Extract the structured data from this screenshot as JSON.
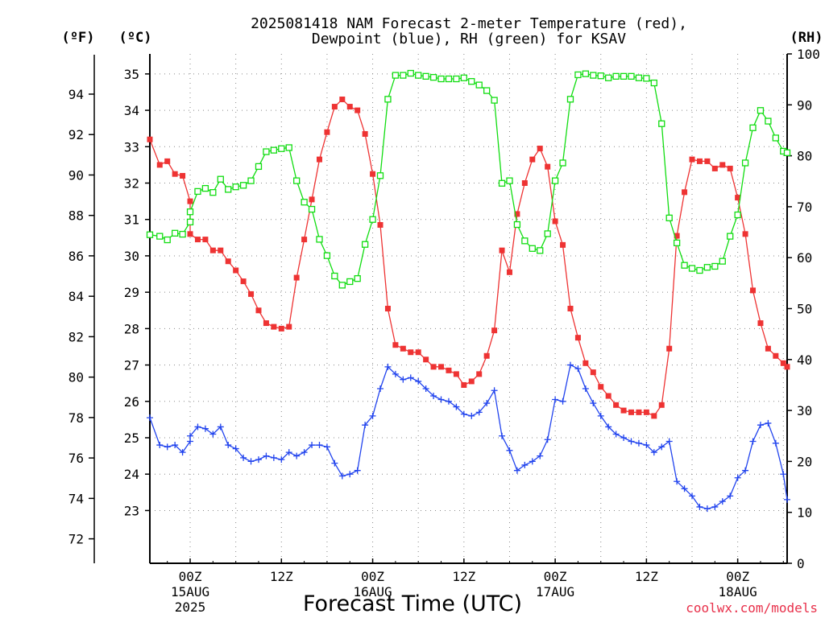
{
  "chart_data": {
    "type": "line",
    "title_line1": "2025081418 NAM Forecast 2-meter Temperature (red),",
    "title_line2": "Dewpoint (blue), RH (green) for KSAV",
    "left_outer_unit": "(ºF)",
    "left_inner_unit": "(ºC)",
    "right_unit": "(RH)",
    "xlabel": "Forecast Time (UTC)",
    "credit": "coolwx.com/models",
    "hours_range": [
      -5.3,
      78.5
    ],
    "celsius_range": [
      21.55,
      35.55
    ],
    "rh_range": [
      0,
      100
    ],
    "fahrenheit_ticks": [
      72,
      74,
      76,
      78,
      80,
      82,
      84,
      86,
      88,
      90,
      92,
      94
    ],
    "celsius_ticks": [
      23,
      24,
      25,
      26,
      27,
      28,
      29,
      30,
      31,
      32,
      33,
      34,
      35
    ],
    "rh_ticks": [
      0,
      10,
      20,
      30,
      40,
      50,
      60,
      70,
      80,
      90,
      100
    ],
    "x_ticks": [
      {
        "hour": 0,
        "l1": "00Z",
        "l2": "15AUG",
        "l3": "2025"
      },
      {
        "hour": 12,
        "l1": "12Z",
        "l2": "",
        "l3": ""
      },
      {
        "hour": 24,
        "l1": "00Z",
        "l2": "16AUG",
        "l3": ""
      },
      {
        "hour": 36,
        "l1": "12Z",
        "l2": "",
        "l3": ""
      },
      {
        "hour": 48,
        "l1": "00Z",
        "l2": "17AUG",
        "l3": ""
      },
      {
        "hour": 60,
        "l1": "12Z",
        "l2": "",
        "l3": ""
      },
      {
        "hour": 72,
        "l1": "00Z",
        "l2": "18AUG",
        "l3": ""
      }
    ],
    "grid": true,
    "series": [
      {
        "color": "#ee3333",
        "marker": "square-filled",
        "axis": "celsius",
        "points": [
          [
            -5.3,
            33.2
          ],
          [
            -4,
            32.5
          ],
          [
            -3,
            32.6
          ],
          [
            -2,
            32.25
          ],
          [
            -1,
            32.2
          ],
          [
            0,
            31.5
          ],
          [
            0,
            30.6
          ],
          [
            1,
            30.45
          ],
          [
            2,
            30.45
          ],
          [
            3,
            30.15
          ],
          [
            4,
            30.15
          ],
          [
            5,
            29.85
          ],
          [
            6,
            29.6
          ],
          [
            7,
            29.3
          ],
          [
            8,
            28.95
          ],
          [
            9,
            28.5
          ],
          [
            10,
            28.15
          ],
          [
            11,
            28.05
          ],
          [
            12,
            28.0
          ],
          [
            13,
            28.05
          ],
          [
            14,
            29.4
          ],
          [
            15,
            30.45
          ],
          [
            16,
            31.55
          ],
          [
            17,
            32.65
          ],
          [
            18,
            33.4
          ],
          [
            19,
            34.1
          ],
          [
            20,
            34.3
          ],
          [
            21,
            34.1
          ],
          [
            22,
            34.0
          ],
          [
            23,
            33.35
          ],
          [
            24,
            32.25
          ],
          [
            25,
            30.85
          ],
          [
            26,
            28.55
          ],
          [
            27,
            27.55
          ],
          [
            28,
            27.45
          ],
          [
            29,
            27.35
          ],
          [
            30,
            27.35
          ],
          [
            31,
            27.15
          ],
          [
            32,
            26.95
          ],
          [
            33,
            26.95
          ],
          [
            34,
            26.85
          ],
          [
            35,
            26.75
          ],
          [
            36,
            26.45
          ],
          [
            37,
            26.55
          ],
          [
            38,
            26.75
          ],
          [
            39,
            27.25
          ],
          [
            40,
            27.95
          ],
          [
            41,
            30.15
          ],
          [
            42,
            29.55
          ],
          [
            43,
            31.15
          ],
          [
            44,
            32.0
          ],
          [
            45,
            32.65
          ],
          [
            46,
            32.95
          ],
          [
            47,
            32.45
          ],
          [
            48,
            30.95
          ],
          [
            49,
            30.3
          ],
          [
            50,
            28.55
          ],
          [
            51,
            27.75
          ],
          [
            52,
            27.05
          ],
          [
            53,
            26.8
          ],
          [
            54,
            26.4
          ],
          [
            55,
            26.15
          ],
          [
            56,
            25.9
          ],
          [
            57,
            25.75
          ],
          [
            58,
            25.7
          ],
          [
            59,
            25.7
          ],
          [
            60,
            25.7
          ],
          [
            61,
            25.6
          ],
          [
            62,
            25.9
          ],
          [
            63,
            27.45
          ],
          [
            64,
            30.55
          ],
          [
            65,
            31.75
          ],
          [
            66,
            32.65
          ],
          [
            67,
            32.6
          ],
          [
            68,
            32.6
          ],
          [
            69,
            32.4
          ],
          [
            70,
            32.5
          ],
          [
            71,
            32.4
          ],
          [
            72,
            31.6
          ],
          [
            73,
            30.6
          ],
          [
            74,
            29.05
          ],
          [
            75,
            28.15
          ],
          [
            76,
            27.45
          ],
          [
            77,
            27.25
          ],
          [
            78,
            27.05
          ],
          [
            78.5,
            26.95
          ]
        ]
      },
      {
        "color": "#2244ee",
        "marker": "plus",
        "axis": "celsius",
        "points": [
          [
            -5.3,
            25.55
          ],
          [
            -4,
            24.8
          ],
          [
            -3,
            24.75
          ],
          [
            -2,
            24.8
          ],
          [
            -1,
            24.6
          ],
          [
            0,
            24.9
          ],
          [
            0,
            25.05
          ],
          [
            1,
            25.3
          ],
          [
            2,
            25.25
          ],
          [
            3,
            25.1
          ],
          [
            4,
            25.3
          ],
          [
            5,
            24.8
          ],
          [
            6,
            24.7
          ],
          [
            7,
            24.45
          ],
          [
            8,
            24.35
          ],
          [
            9,
            24.4
          ],
          [
            10,
            24.5
          ],
          [
            11,
            24.45
          ],
          [
            12,
            24.4
          ],
          [
            13,
            24.6
          ],
          [
            14,
            24.5
          ],
          [
            15,
            24.6
          ],
          [
            16,
            24.8
          ],
          [
            17,
            24.8
          ],
          [
            18,
            24.75
          ],
          [
            19,
            24.3
          ],
          [
            20,
            23.95
          ],
          [
            21,
            24.0
          ],
          [
            22,
            24.1
          ],
          [
            23,
            25.35
          ],
          [
            24,
            25.6
          ],
          [
            25,
            26.35
          ],
          [
            26,
            26.95
          ],
          [
            27,
            26.75
          ],
          [
            28,
            26.6
          ],
          [
            29,
            26.65
          ],
          [
            30,
            26.55
          ],
          [
            31,
            26.35
          ],
          [
            32,
            26.15
          ],
          [
            33,
            26.05
          ],
          [
            34,
            26.0
          ],
          [
            35,
            25.85
          ],
          [
            36,
            25.65
          ],
          [
            37,
            25.6
          ],
          [
            38,
            25.7
          ],
          [
            39,
            25.95
          ],
          [
            40,
            26.3
          ],
          [
            41,
            25.05
          ],
          [
            42,
            24.65
          ],
          [
            43,
            24.1
          ],
          [
            44,
            24.25
          ],
          [
            45,
            24.35
          ],
          [
            46,
            24.5
          ],
          [
            47,
            24.95
          ],
          [
            48,
            26.05
          ],
          [
            49,
            26.0
          ],
          [
            50,
            27.0
          ],
          [
            51,
            26.9
          ],
          [
            52,
            26.35
          ],
          [
            53,
            25.95
          ],
          [
            54,
            25.6
          ],
          [
            55,
            25.3
          ],
          [
            56,
            25.1
          ],
          [
            57,
            25.0
          ],
          [
            58,
            24.9
          ],
          [
            59,
            24.85
          ],
          [
            60,
            24.8
          ],
          [
            61,
            24.6
          ],
          [
            62,
            24.75
          ],
          [
            63,
            24.9
          ],
          [
            64,
            23.8
          ],
          [
            65,
            23.6
          ],
          [
            66,
            23.4
          ],
          [
            67,
            23.1
          ],
          [
            68,
            23.05
          ],
          [
            69,
            23.1
          ],
          [
            70,
            23.25
          ],
          [
            71,
            23.4
          ],
          [
            72,
            23.9
          ],
          [
            73,
            24.1
          ],
          [
            74,
            24.9
          ],
          [
            75,
            25.35
          ],
          [
            76,
            25.4
          ],
          [
            77,
            24.85
          ],
          [
            78,
            24.0
          ],
          [
            78.5,
            23.3
          ]
        ]
      },
      {
        "color": "#11dd11",
        "marker": "square-open",
        "axis": "rh",
        "points": [
          [
            -5.3,
            64.5
          ],
          [
            -4,
            64.2
          ],
          [
            -3,
            63.5
          ],
          [
            -2,
            64.8
          ],
          [
            -1,
            64.6
          ],
          [
            0,
            67
          ],
          [
            0,
            69
          ],
          [
            1,
            73
          ],
          [
            2,
            73.6
          ],
          [
            3,
            72.8
          ],
          [
            4,
            75.4
          ],
          [
            5,
            73.4
          ],
          [
            6,
            73.9
          ],
          [
            7,
            74.2
          ],
          [
            8,
            75.1
          ],
          [
            9,
            77.9
          ],
          [
            10,
            80.8
          ],
          [
            11,
            81.1
          ],
          [
            12,
            81.4
          ],
          [
            13,
            81.6
          ],
          [
            14,
            75.1
          ],
          [
            15,
            70.9
          ],
          [
            16,
            69.5
          ],
          [
            17,
            63.6
          ],
          [
            18,
            60.4
          ],
          [
            19,
            56.4
          ],
          [
            20,
            54.6
          ],
          [
            21,
            55.3
          ],
          [
            22,
            55.9
          ],
          [
            23,
            62.6
          ],
          [
            24,
            67.5
          ],
          [
            25,
            76.1
          ],
          [
            26,
            91.1
          ],
          [
            27,
            95.8
          ],
          [
            28,
            95.8
          ],
          [
            29,
            96.2
          ],
          [
            30,
            95.8
          ],
          [
            31,
            95.6
          ],
          [
            32,
            95.4
          ],
          [
            33,
            95.1
          ],
          [
            34,
            95.1
          ],
          [
            35,
            95.1
          ],
          [
            36,
            95.3
          ],
          [
            37,
            94.6
          ],
          [
            38,
            93.9
          ],
          [
            39,
            92.8
          ],
          [
            40,
            90.9
          ],
          [
            41,
            74.6
          ],
          [
            42,
            75.1
          ],
          [
            43,
            66.5
          ],
          [
            44,
            63.3
          ],
          [
            45,
            61.8
          ],
          [
            46,
            61.4
          ],
          [
            47,
            64.7
          ],
          [
            48,
            75.1
          ],
          [
            49,
            78.6
          ],
          [
            50,
            91.1
          ],
          [
            51,
            95.9
          ],
          [
            52,
            96.1
          ],
          [
            53,
            95.8
          ],
          [
            54,
            95.7
          ],
          [
            55,
            95.3
          ],
          [
            56,
            95.6
          ],
          [
            57,
            95.6
          ],
          [
            58,
            95.6
          ],
          [
            59,
            95.3
          ],
          [
            60,
            95.2
          ],
          [
            61,
            94.3
          ],
          [
            62,
            86.3
          ],
          [
            63,
            67.8
          ],
          [
            64,
            62.9
          ],
          [
            65,
            58.5
          ],
          [
            66,
            57.9
          ],
          [
            67,
            57.5
          ],
          [
            68,
            58.1
          ],
          [
            69,
            58.3
          ],
          [
            70,
            59.3
          ],
          [
            71,
            64.2
          ],
          [
            72,
            68.4
          ],
          [
            73,
            78.6
          ],
          [
            74,
            85.5
          ],
          [
            75,
            88.9
          ],
          [
            76,
            86.8
          ],
          [
            77,
            83.5
          ],
          [
            78,
            80.9
          ],
          [
            78.5,
            80.6
          ]
        ]
      }
    ]
  }
}
